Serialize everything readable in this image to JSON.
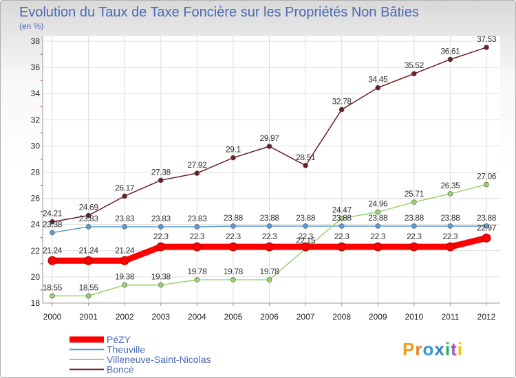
{
  "chart_data": {
    "type": "line",
    "title": "Evolution du Taux de Taxe Foncière sur les Propriétés Non Bâties",
    "subtitle": "(en %)",
    "x": [
      "2000",
      "2001",
      "2002",
      "2003",
      "2004",
      "2005",
      "2006",
      "2007",
      "2008",
      "2009",
      "2010",
      "2011",
      "2012"
    ],
    "ylim": [
      18,
      38
    ],
    "yticks": [
      18,
      20,
      22,
      24,
      26,
      28,
      30,
      32,
      34,
      36,
      38
    ],
    "grid": true,
    "legend_position": "bottom-left",
    "series": [
      {
        "name": "PéZY",
        "color": "#ff0000",
        "values": [
          21.24,
          21.24,
          21.24,
          22.3,
          22.3,
          22.3,
          22.3,
          22.3,
          22.3,
          22.3,
          22.3,
          22.3,
          22.97
        ],
        "labels": [
          "21.24",
          "21.24",
          "21.24",
          "22.3",
          "22.3",
          "22.3",
          "22.3",
          "22.3",
          "22.3",
          "22.3",
          "22.3",
          "22.3",
          "22.97"
        ]
      },
      {
        "name": "Theuville",
        "color": "#5b9bd5",
        "values": [
          23.38,
          23.83,
          23.83,
          23.83,
          23.83,
          23.88,
          23.88,
          23.88,
          23.88,
          23.88,
          23.88,
          23.88,
          23.88
        ],
        "labels": [
          "23.38",
          "23.83",
          "23.83",
          "23.83",
          "23.83",
          "23.88",
          "23.88",
          "23.88",
          "23.88",
          "23.88",
          "23.88",
          "23.88",
          "23.88"
        ]
      },
      {
        "name": "Villeneuve-Saint-Nicolas",
        "color": "#99d36b",
        "values": [
          18.55,
          18.55,
          19.38,
          19.38,
          19.78,
          19.78,
          19.78,
          22.15,
          24.47,
          24.96,
          25.71,
          26.35,
          27.06
        ],
        "labels": [
          "18.55",
          "18.55",
          "19.38",
          "19.38",
          "19.78",
          "19.78",
          "19.78",
          "22.15",
          "24.47",
          "24.96",
          "25.71",
          "26.35",
          "27.06"
        ]
      },
      {
        "name": "Boncé",
        "color": "#6b1f24",
        "values": [
          24.21,
          24.69,
          26.17,
          27.38,
          27.92,
          29.1,
          29.97,
          28.51,
          32.78,
          34.45,
          35.52,
          36.61,
          37.53
        ],
        "labels": [
          "24.21",
          "24.69",
          "26.17",
          "27.38",
          "27.92",
          "29.1",
          "29.97",
          "28.51",
          "32.78",
          "34.45",
          "35.52",
          "36.61",
          "37.53"
        ]
      }
    ]
  },
  "logo": {
    "text": "Proxiti"
  }
}
